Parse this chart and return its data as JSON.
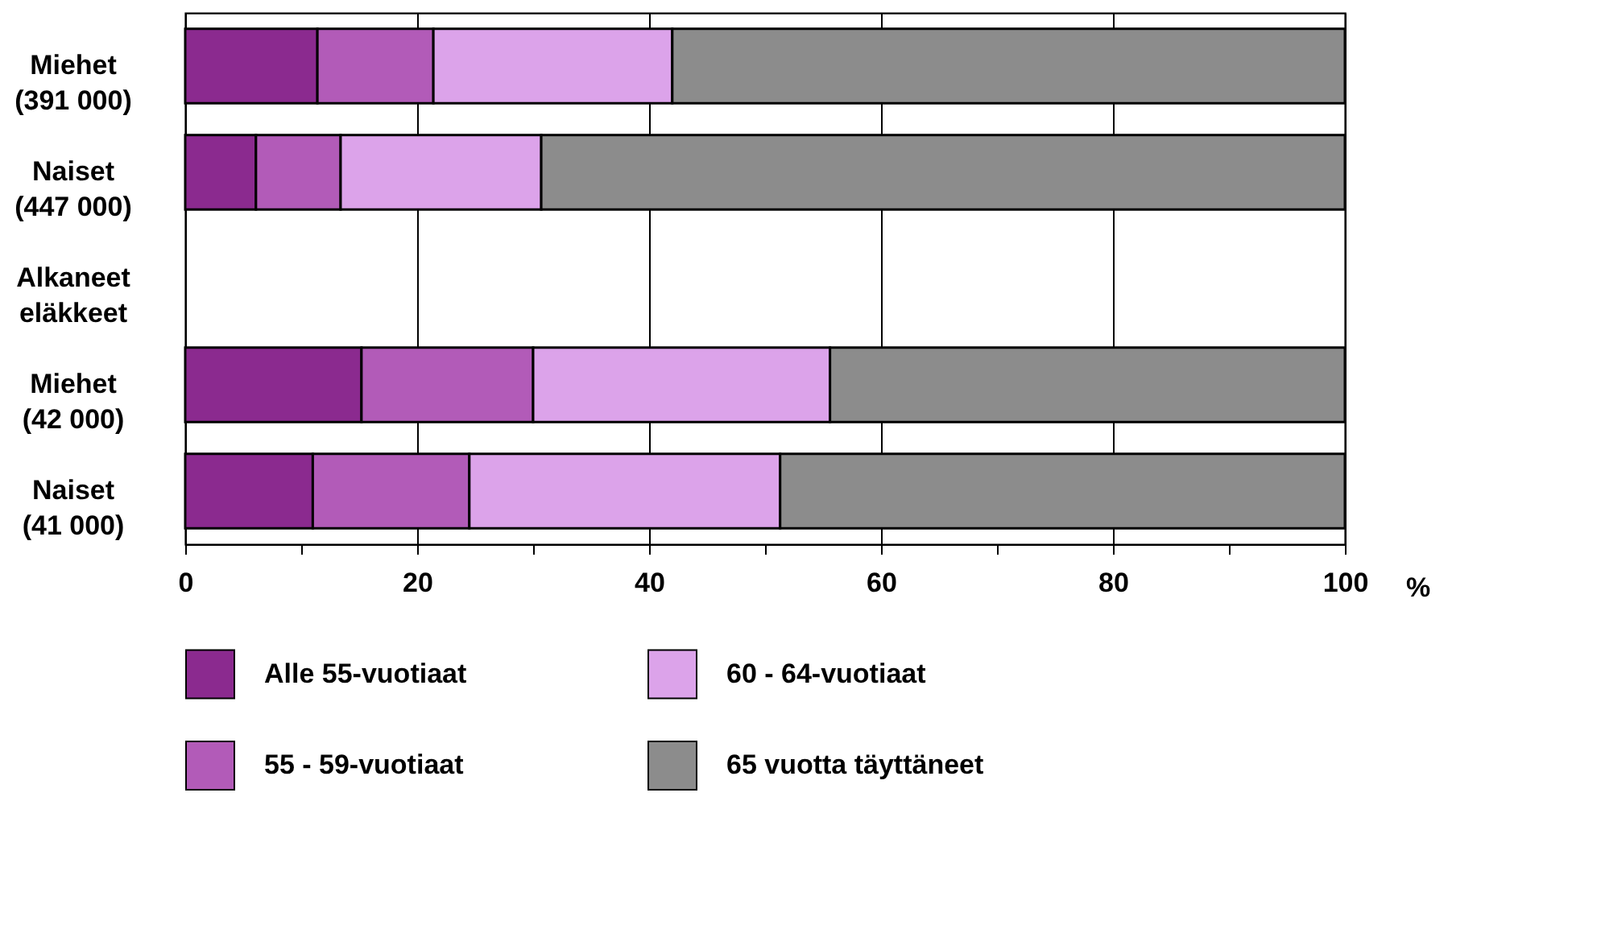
{
  "chart_data": {
    "type": "bar",
    "orientation": "horizontal",
    "stacked": true,
    "categories": [
      "Miehet (391 000)",
      "Naiset (447 000)",
      "Alkaneet eläkkeet",
      "Miehet (42 000)",
      "Naiset (41 000)"
    ],
    "series": [
      {
        "name": "Alle 55-vuotiaat",
        "color": "#8b2a8f",
        "values": [
          11.4,
          6.1,
          null,
          15.2,
          11.0
        ]
      },
      {
        "name": "55 - 59-vuotiaat",
        "color": "#b25bb8",
        "values": [
          10.0,
          7.3,
          null,
          14.8,
          13.5
        ]
      },
      {
        "name": "60 - 64-vuotiaat",
        "color": "#dca3ea",
        "values": [
          20.6,
          17.3,
          null,
          25.6,
          26.8
        ]
      },
      {
        "name": "65 vuotta täyttäneet",
        "color": "#8c8c8c",
        "values": [
          58.0,
          69.3,
          null,
          44.4,
          48.7
        ]
      }
    ],
    "xlabel": "%",
    "xlim": [
      0,
      100
    ],
    "xticks": [
      0,
      {
        "value": 10,
        "label": null
      },
      20,
      {
        "value": 30,
        "label": null
      },
      40,
      {
        "value": 50,
        "label": null
      },
      60,
      {
        "value": 70,
        "label": null
      },
      80,
      {
        "value": 90,
        "label": null
      },
      100
    ],
    "grid": "x",
    "legend": "bottom"
  }
}
